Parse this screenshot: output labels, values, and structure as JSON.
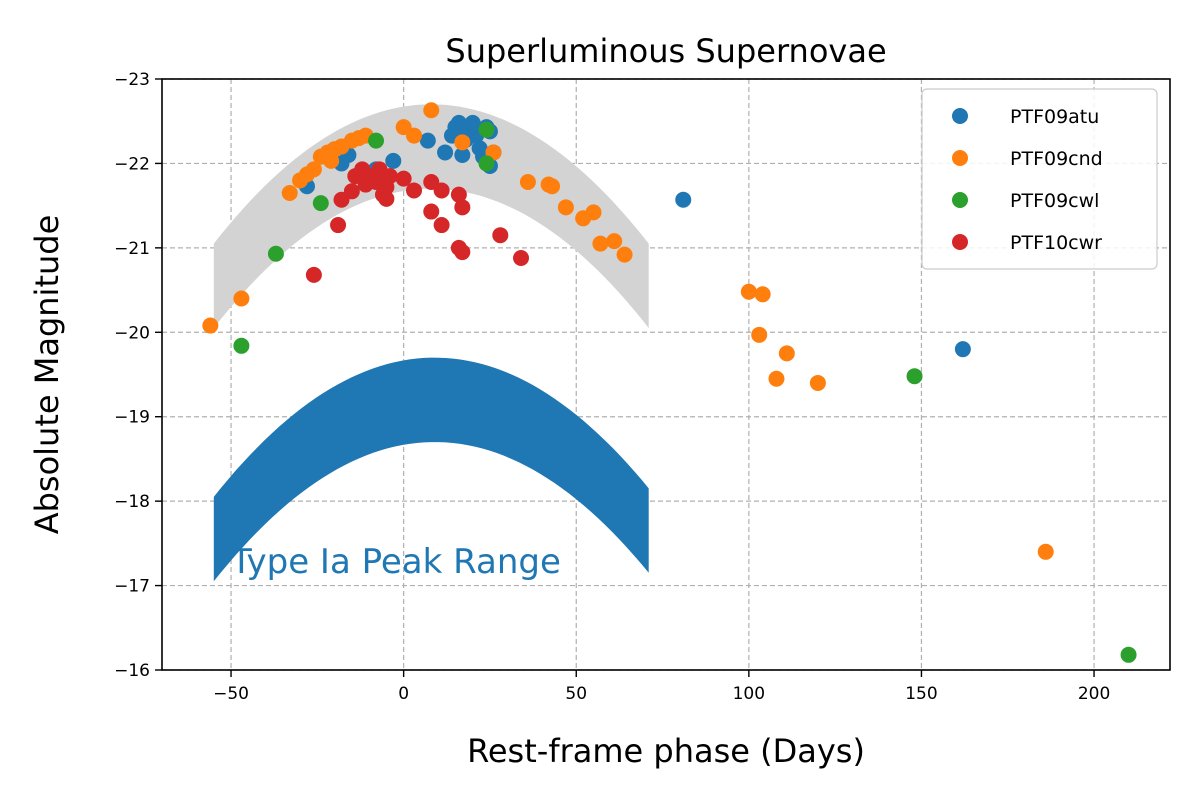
{
  "chart_data": {
    "type": "scatter",
    "title": "Superluminous Supernovae",
    "xlabel": "Rest-frame phase (Days)",
    "ylabel": "Absolute Magnitude",
    "xlim": [
      -70,
      222
    ],
    "ylim": [
      -16,
      -23
    ],
    "y_inverted": true,
    "grid": true,
    "legend_position": "top-right",
    "x_ticks": [
      {
        "value": -50,
        "label": "−50"
      },
      {
        "value": 0,
        "label": "0"
      },
      {
        "value": 50,
        "label": "50"
      },
      {
        "value": 100,
        "label": "100"
      },
      {
        "value": 150,
        "label": "150"
      },
      {
        "value": 200,
        "label": "200"
      }
    ],
    "y_ticks": [
      {
        "value": -16,
        "label": "−16"
      },
      {
        "value": -17,
        "label": "−17"
      },
      {
        "value": -18,
        "label": "−18"
      },
      {
        "value": -19,
        "label": "−19"
      },
      {
        "value": -20,
        "label": "−20"
      },
      {
        "value": -21,
        "label": "−21"
      },
      {
        "value": -22,
        "label": "−22"
      },
      {
        "value": -23,
        "label": "−23"
      }
    ],
    "bands": [
      {
        "label": "",
        "color": "#d3d3d3",
        "x_range": [
          -55,
          71
        ],
        "peak_x": 8,
        "peak_upper": -22.7,
        "peak_lower": -21.7,
        "end_upper": -21.05,
        "end_lower": -20.05
      },
      {
        "label": "Type Ia Peak Range",
        "color": "#1f77b4",
        "x_range": [
          -55,
          71
        ],
        "peak_x": 9,
        "peak_upper": -19.7,
        "peak_lower": -18.7,
        "end_upper": -18.05,
        "end_lower": -17.05
      }
    ],
    "annotation": {
      "text": "Type Ia Peak Range",
      "x": -50,
      "y": -17.15,
      "color": "#1f77b4"
    },
    "series": [
      {
        "name": "PTF09atu",
        "color": "#1f77b4",
        "points": [
          [
            -28,
            -21.73
          ],
          [
            -18,
            -22.0
          ],
          [
            -16,
            -22.1
          ],
          [
            -8,
            -21.93
          ],
          [
            -3,
            -22.03
          ],
          [
            7,
            -22.27
          ],
          [
            12,
            -22.13
          ],
          [
            14,
            -22.33
          ],
          [
            15,
            -22.43
          ],
          [
            16,
            -22.48
          ],
          [
            17,
            -22.38
          ],
          [
            18,
            -22.28
          ],
          [
            19,
            -22.43
          ],
          [
            20,
            -22.48
          ],
          [
            21,
            -22.33
          ],
          [
            22,
            -22.18
          ],
          [
            23,
            -22.08
          ],
          [
            24,
            -22.43
          ],
          [
            25,
            -22.38
          ],
          [
            26,
            -22.13
          ],
          [
            25,
            -21.97
          ],
          [
            17,
            -22.1
          ],
          [
            81,
            -21.57
          ],
          [
            162,
            -19.8
          ]
        ]
      },
      {
        "name": "PTF09cnd",
        "color": "#ff7f0e",
        "points": [
          [
            -56,
            -20.08
          ],
          [
            -47,
            -20.4
          ],
          [
            -33,
            -21.65
          ],
          [
            -30,
            -21.8
          ],
          [
            -28,
            -21.87
          ],
          [
            -26,
            -21.93
          ],
          [
            -24,
            -22.08
          ],
          [
            -22,
            -22.13
          ],
          [
            -20,
            -22.17
          ],
          [
            -18,
            -22.2
          ],
          [
            -15,
            -22.27
          ],
          [
            -13,
            -22.3
          ],
          [
            -11,
            -22.33
          ],
          [
            -21,
            -22.03
          ],
          [
            0,
            -22.43
          ],
          [
            3,
            -22.33
          ],
          [
            8,
            -22.63
          ],
          [
            17,
            -22.25
          ],
          [
            26,
            -22.13
          ],
          [
            36,
            -21.78
          ],
          [
            42,
            -21.75
          ],
          [
            43,
            -21.73
          ],
          [
            47,
            -21.48
          ],
          [
            52,
            -21.35
          ],
          [
            55,
            -21.42
          ],
          [
            57,
            -21.05
          ],
          [
            61,
            -21.08
          ],
          [
            64,
            -20.92
          ],
          [
            100,
            -20.48
          ],
          [
            104,
            -20.45
          ],
          [
            103,
            -19.97
          ],
          [
            108,
            -19.45
          ],
          [
            111,
            -19.75
          ],
          [
            120,
            -19.4
          ],
          [
            186,
            -17.4
          ]
        ]
      },
      {
        "name": "PTF09cwl",
        "color": "#2ca02c",
        "points": [
          [
            -37,
            -20.93
          ],
          [
            -24,
            -21.53
          ],
          [
            -8,
            -22.27
          ],
          [
            24,
            -22.4
          ],
          [
            24,
            -22.0
          ],
          [
            -47,
            -19.84
          ],
          [
            148,
            -19.48
          ],
          [
            210,
            -16.18
          ]
        ]
      },
      {
        "name": "PTF10cwr",
        "color": "#d62728",
        "points": [
          [
            -26,
            -20.68
          ],
          [
            -19,
            -21.27
          ],
          [
            -18,
            -21.57
          ],
          [
            -15,
            -21.67
          ],
          [
            -14,
            -21.85
          ],
          [
            -12,
            -21.93
          ],
          [
            -11,
            -21.75
          ],
          [
            -9,
            -21.85
          ],
          [
            -8,
            -21.78
          ],
          [
            -7,
            -21.93
          ],
          [
            -6,
            -21.63
          ],
          [
            -5,
            -21.72
          ],
          [
            -4,
            -21.85
          ],
          [
            -5,
            -21.58
          ],
          [
            0,
            -21.82
          ],
          [
            3,
            -21.68
          ],
          [
            8,
            -21.78
          ],
          [
            8,
            -21.43
          ],
          [
            11,
            -21.68
          ],
          [
            11,
            -21.27
          ],
          [
            16,
            -21.63
          ],
          [
            17,
            -21.48
          ],
          [
            16,
            -21.0
          ],
          [
            17,
            -20.95
          ],
          [
            28,
            -21.15
          ],
          [
            34,
            -20.88
          ]
        ]
      }
    ]
  }
}
